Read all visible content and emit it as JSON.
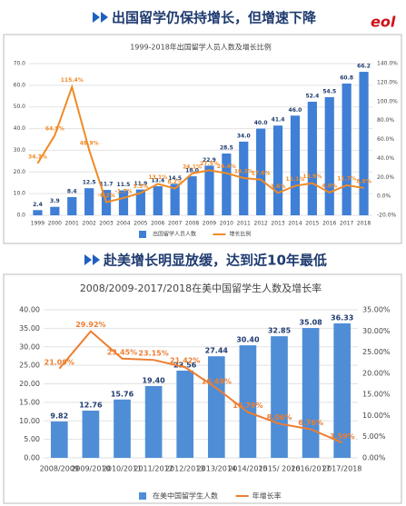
{
  "headers": [
    "出国留学仍保持增长，但增速下降",
    "赴美增长明显放缓，达到近10年最低"
  ],
  "logo": "eol",
  "chart_data": [
    {
      "type": "bar",
      "title": "1999-2018年出国留学人员人数及增长比例",
      "categories": [
        "1999",
        "2000",
        "2001",
        "2002",
        "2003",
        "2004",
        "2005",
        "2006",
        "2007",
        "2008",
        "2009",
        "2010",
        "2011",
        "2012",
        "2013",
        "2014",
        "2015",
        "2016",
        "2017",
        "2018"
      ],
      "series": [
        {
          "name": "出国留学人员人数",
          "color": "#3f7fd6",
          "values": [
            2.4,
            3.9,
            8.4,
            12.5,
            11.7,
            11.5,
            11.9,
            13.4,
            14.5,
            18.0,
            22.9,
            28.5,
            34.0,
            40.0,
            41.4,
            46.0,
            52.4,
            54.5,
            60.8,
            66.2
          ],
          "value_labels": [
            "2.4",
            "3.9",
            "8.4",
            "12.5",
            "11.7",
            "11.5",
            "11.9",
            "13.4",
            "14.5",
            "18.0",
            "22.9",
            "28.5",
            "34.0",
            "40.0",
            "41.4",
            "46.0",
            "52.4",
            "54.5",
            "60.8",
            "66.2"
          ]
        },
        {
          "name": "增长比例",
          "color": "#f08a24",
          "type": "line",
          "axis": "y2",
          "values": [
            34.7,
            64.5,
            115.4,
            48.9,
            -6.2,
            -1.7,
            3.5,
            13.1,
            8.2,
            24.1,
            27.5,
            24.4,
            19.3,
            17.6,
            3.6,
            11.1,
            13.9,
            4.0,
            11.7,
            8.8
          ],
          "value_labels": [
            "34.7%",
            "64.5%",
            "115.4%",
            "48.9%",
            "-6.2%",
            "-1.7%",
            "3.5%",
            "13.1%",
            "8.2%",
            "24.1%",
            "27.5%",
            "24.4%",
            "19.3%",
            "17.6%",
            "3.6%",
            "11.1%",
            "13.9%",
            "4.0%",
            "11.7%",
            "8.8%"
          ]
        }
      ],
      "ylim": [
        0,
        70
      ],
      "yticks": [
        {
          "value": 0,
          "label": "0.0"
        },
        {
          "value": 10,
          "label": "10.0"
        },
        {
          "value": 20,
          "label": "20.0"
        },
        {
          "value": 30,
          "label": "30.0"
        },
        {
          "value": 40,
          "label": "40.0"
        },
        {
          "value": 50,
          "label": "50.0"
        },
        {
          "value": 60,
          "label": "60.0"
        },
        {
          "value": 70,
          "label": "70.0"
        }
      ],
      "y2lim": [
        -20,
        140
      ],
      "y2ticks": [
        {
          "value": -20,
          "label": "-20.0%"
        },
        {
          "value": 0,
          "label": "0.0%"
        },
        {
          "value": 20,
          "label": "20.0%"
        },
        {
          "value": 40,
          "label": "40.0%"
        },
        {
          "value": 60,
          "label": "60.0%"
        },
        {
          "value": 80,
          "label": "80.0%"
        },
        {
          "value": 100,
          "label": "100.0%"
        },
        {
          "value": 120,
          "label": "120.0%"
        },
        {
          "value": 140,
          "label": "140.0%"
        }
      ],
      "grid": true,
      "legend": "bottom"
    },
    {
      "type": "bar",
      "title": "2008/2009-2017/2018在美中国留学生人数及增长率",
      "categories": [
        "2008/2009",
        "2009/2010",
        "2010/2011",
        "2011/2012",
        "2012/2013",
        "2013/2014",
        "2014/2015",
        "2015/ 2016",
        "2016/2017",
        "2017/2018"
      ],
      "series": [
        {
          "name": "在美中国留学生人数",
          "color": "#4f8ed6",
          "values": [
            9.82,
            12.76,
            15.76,
            19.4,
            23.56,
            27.44,
            30.4,
            32.85,
            35.08,
            36.33
          ],
          "value_labels": [
            "9.82",
            "12.76",
            "15.76",
            "19.40",
            "23.56",
            "27.44",
            "30.40",
            "32.85",
            "35.08",
            "36.33"
          ]
        },
        {
          "name": "年增长率",
          "color": "#ed7d31",
          "type": "line",
          "axis": "y2",
          "values": [
            21.09,
            29.92,
            23.45,
            23.15,
            21.42,
            16.49,
            10.79,
            8.06,
            6.76,
            3.59
          ],
          "value_labels": [
            "21.09%",
            "29.92%",
            "23.45%",
            "23.15%",
            "21.42%",
            "16.49%",
            "10.79%",
            "8.06%",
            "6.76%",
            "3.59%"
          ]
        }
      ],
      "ylim": [
        0,
        40
      ],
      "yticks": [
        {
          "value": 0,
          "label": "0.00"
        },
        {
          "value": 5,
          "label": "5.00"
        },
        {
          "value": 10,
          "label": "10.00"
        },
        {
          "value": 15,
          "label": "15.00"
        },
        {
          "value": 20,
          "label": "20.00"
        },
        {
          "value": 25,
          "label": "25.00"
        },
        {
          "value": 30,
          "label": "30.00"
        },
        {
          "value": 35,
          "label": "35.00"
        },
        {
          "value": 40,
          "label": "40.00"
        }
      ],
      "y2lim": [
        0,
        35
      ],
      "y2ticks": [
        {
          "value": 0,
          "label": "0.00%"
        },
        {
          "value": 5,
          "label": "5.00%"
        },
        {
          "value": 10,
          "label": "10.00%"
        },
        {
          "value": 15,
          "label": "15.00%"
        },
        {
          "value": 20,
          "label": "20.00%"
        },
        {
          "value": 25,
          "label": "25.00%"
        },
        {
          "value": 30,
          "label": "30.00%"
        },
        {
          "value": 35,
          "label": "35.00%"
        }
      ],
      "grid": true,
      "legend": "bottom"
    }
  ]
}
